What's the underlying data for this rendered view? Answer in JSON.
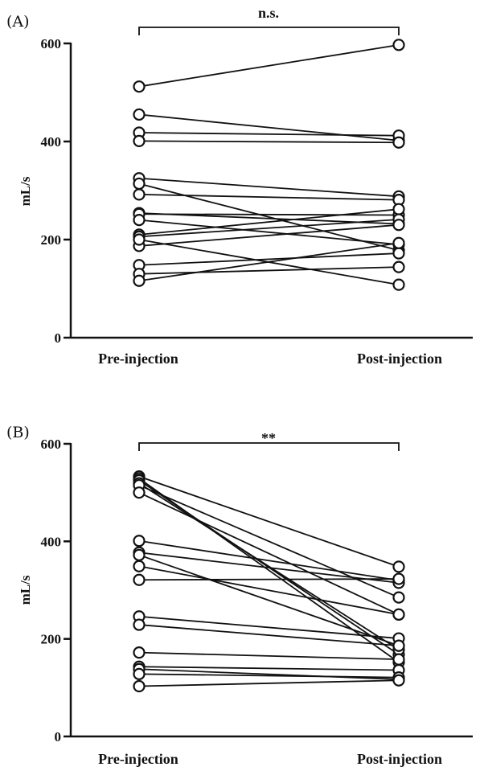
{
  "chart_data": [
    {
      "type": "line",
      "panel_label": "(A)",
      "ylabel": "mL/s",
      "categories": [
        "Pre-injection",
        "Post-injection"
      ],
      "ylim": [
        0,
        600
      ],
      "yticks": [
        0,
        200,
        400,
        600
      ],
      "significance": "n.s.",
      "grid": false,
      "pairs": [
        [
          512,
          597
        ],
        [
          455,
          402
        ],
        [
          418,
          412
        ],
        [
          401,
          398
        ],
        [
          325,
          288
        ],
        [
          314,
          178
        ],
        [
          292,
          281
        ],
        [
          254,
          232
        ],
        [
          252,
          250
        ],
        [
          240,
          190
        ],
        [
          210,
          262
        ],
        [
          206,
          241
        ],
        [
          187,
          230
        ],
        [
          148,
          172
        ],
        [
          130,
          144
        ],
        [
          116,
          193
        ],
        [
          200,
          108
        ]
      ]
    },
    {
      "type": "line",
      "panel_label": "(B)",
      "ylabel": "mL/s",
      "categories": [
        "Pre-injection",
        "Post-injection"
      ],
      "ylim": [
        0,
        600
      ],
      "yticks": [
        0,
        200,
        400,
        600
      ],
      "significance": "**",
      "grid": false,
      "pairs": [
        [
          533,
          348
        ],
        [
          529,
          152
        ],
        [
          525,
          168
        ],
        [
          519,
          178
        ],
        [
          515,
          285
        ],
        [
          500,
          250
        ],
        [
          401,
          320
        ],
        [
          377,
          315
        ],
        [
          372,
          186
        ],
        [
          349,
          250
        ],
        [
          321,
          323
        ],
        [
          246,
          201
        ],
        [
          229,
          186
        ],
        [
          172,
          158
        ],
        [
          143,
          136
        ],
        [
          138,
          117
        ],
        [
          128,
          121
        ],
        [
          103,
          115
        ]
      ]
    }
  ]
}
